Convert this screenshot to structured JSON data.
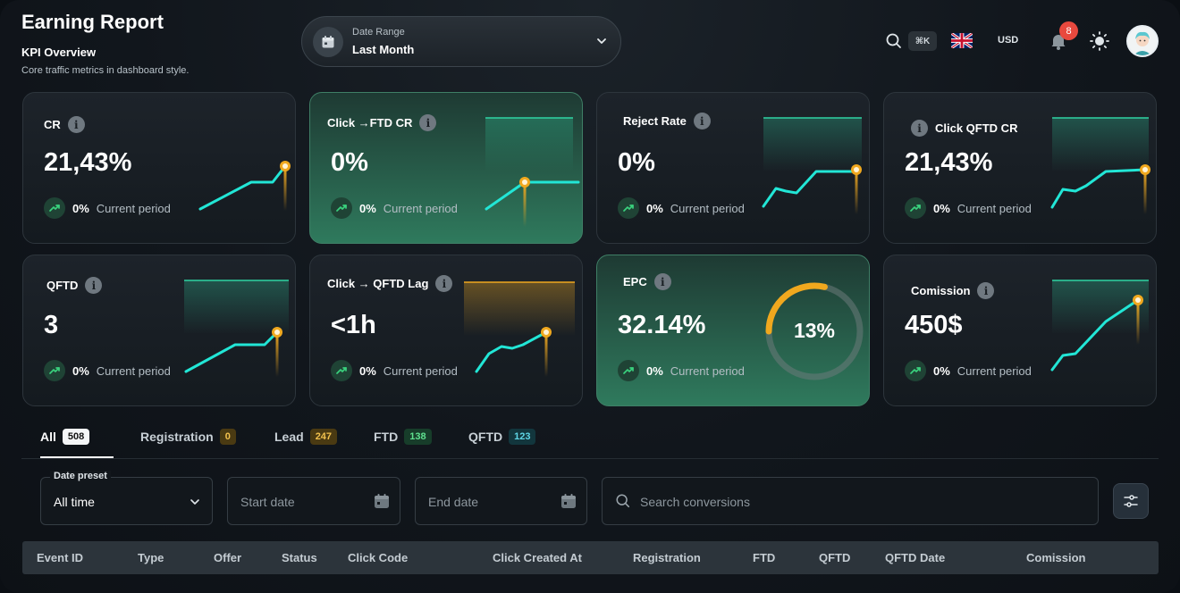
{
  "header": {
    "title": "Earning Report",
    "section_title": "KPI Overview",
    "section_subtitle": "Core traffic metrics in dashboard style."
  },
  "date_range": {
    "label": "Date Range",
    "value": "Last Month"
  },
  "toolbar": {
    "shortcut": "⌘K",
    "currency": "USD",
    "notification_count": "8",
    "language_flag": "uk-flag"
  },
  "kpis": [
    {
      "title": "CR",
      "value": "21,43%",
      "change": "0%",
      "period": "Current period",
      "style": "dark"
    },
    {
      "title": "Click →FTD CR",
      "value": "0%",
      "change": "0%",
      "period": "Current period",
      "style": "green"
    },
    {
      "title": "Reject Rate",
      "value": "0%",
      "change": "0%",
      "period": "Current period",
      "style": "dark"
    },
    {
      "title": "Click QFTD CR",
      "value": "21,43%",
      "change": "0%",
      "period": "Current period",
      "style": "dark"
    },
    {
      "title": "QFTD",
      "value": "3",
      "change": "0%",
      "period": "Current period",
      "style": "dark"
    },
    {
      "title": "Click → QFTD Lag",
      "value": "<1h",
      "change": "0%",
      "period": "Current period",
      "style": "dark"
    },
    {
      "title": "EPC",
      "value": "32.14%",
      "change": "0%",
      "period": "Current period",
      "style": "green",
      "gauge_value": "13%",
      "gauge_fraction": 0.13
    },
    {
      "title": "Comission",
      "value": "450$",
      "change": "0%",
      "period": "Current period",
      "style": "dark"
    }
  ],
  "tabs": [
    {
      "label": "All",
      "count": "508",
      "active": true,
      "badge_color": "#f4f6f7",
      "badge_text_color": "#111"
    },
    {
      "label": "Registration",
      "count": "0",
      "badge_color": "#4a3a12",
      "badge_text_color": "#f2c14e"
    },
    {
      "label": "Lead",
      "count": "247",
      "badge_color": "#4a3a12",
      "badge_text_color": "#f2c14e"
    },
    {
      "label": "FTD",
      "count": "138",
      "badge_color": "#173d2a",
      "badge_text_color": "#5fe08f"
    },
    {
      "label": "QFTD",
      "count": "123",
      "badge_color": "#12363d",
      "badge_text_color": "#5fd6e6"
    }
  ],
  "filters": {
    "date_preset_label": "Date preset",
    "date_preset_value": "All time",
    "start_date_placeholder": "Start date",
    "end_date_placeholder": "End date",
    "search_placeholder": "Search conversions"
  },
  "table": {
    "columns": [
      "Event ID",
      "Type",
      "Offer",
      "Status",
      "Click Code",
      "Click Created At",
      "Registration",
      "FTD",
      "QFTD",
      "QFTD Date",
      "Comission"
    ]
  },
  "colors": {
    "accent": "#22e6d6",
    "marker": "#f0a81e",
    "green_card": "#2f7a5d"
  }
}
